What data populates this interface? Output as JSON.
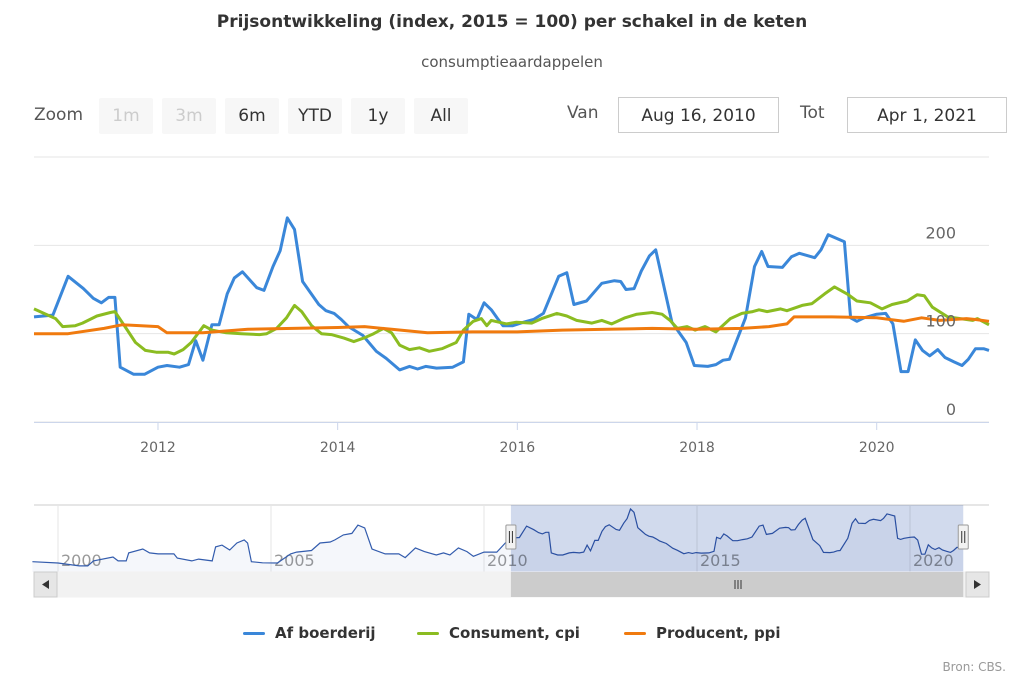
{
  "title": "Prijsontwikkeling (index, 2015 = 100) per schakel in de keten",
  "subtitle": "consumptieaardappelen",
  "range_selector": {
    "zoom_label": "Zoom",
    "buttons": [
      {
        "label": "1m",
        "disabled": true
      },
      {
        "label": "3m",
        "disabled": true
      },
      {
        "label": "6m",
        "disabled": false
      },
      {
        "label": "YTD",
        "disabled": false
      },
      {
        "label": "1y",
        "disabled": false
      },
      {
        "label": "All",
        "disabled": false
      }
    ],
    "from_label": "Van",
    "from_value": "Aug 16, 2010",
    "to_label": "Tot",
    "to_value": "Apr 1, 2021"
  },
  "credits": "Bron: CBS.",
  "chart_data": {
    "type": "line",
    "title": "Prijsontwikkeling (index, 2015 = 100) per schakel in de keten",
    "subtitle": "consumptieaardappelen",
    "xlim": [
      2010.62,
      2021.25
    ],
    "ylim": [
      0,
      300
    ],
    "y_ticks": [
      "0",
      "100",
      "200"
    ],
    "y_tick_values": [
      0,
      100,
      200
    ],
    "x_ticks": [
      "2012",
      "2014",
      "2016",
      "2018",
      "2020"
    ],
    "x_tick_values": [
      2012,
      2014,
      2016,
      2018,
      2020
    ],
    "grid": true,
    "legend_position": "bottom",
    "colors": {
      "blue": "#3a87d9",
      "green": "#8bbc21",
      "orange": "#f07a0e",
      "navigator_line": "#335cad",
      "navigator_mask": "#ccd6eb"
    },
    "series": [
      {
        "name": "Af boerderij",
        "color": "#3a87d9",
        "points": [
          [
            2010.62,
            119
          ],
          [
            2010.83,
            121
          ],
          [
            2011.0,
            165
          ],
          [
            2011.17,
            151
          ],
          [
            2011.28,
            140
          ],
          [
            2011.37,
            135
          ],
          [
            2011.45,
            141
          ],
          [
            2011.52,
            141
          ],
          [
            2011.58,
            62
          ],
          [
            2011.73,
            54
          ],
          [
            2011.85,
            54
          ],
          [
            2012.0,
            62
          ],
          [
            2012.1,
            64
          ],
          [
            2012.24,
            62
          ],
          [
            2012.34,
            65
          ],
          [
            2012.42,
            92
          ],
          [
            2012.5,
            70
          ],
          [
            2012.6,
            110
          ],
          [
            2012.68,
            110
          ],
          [
            2012.77,
            145
          ],
          [
            2012.85,
            163
          ],
          [
            2012.94,
            170
          ],
          [
            2013.1,
            152
          ],
          [
            2013.18,
            149
          ],
          [
            2013.28,
            176
          ],
          [
            2013.36,
            194
          ],
          [
            2013.44,
            231
          ],
          [
            2013.52,
            218
          ],
          [
            2013.61,
            159
          ],
          [
            2013.7,
            146
          ],
          [
            2013.79,
            133
          ],
          [
            2013.87,
            126
          ],
          [
            2013.96,
            123
          ],
          [
            2014.04,
            116
          ],
          [
            2014.12,
            108
          ],
          [
            2014.28,
            98
          ],
          [
            2014.43,
            80
          ],
          [
            2014.54,
            72
          ],
          [
            2014.69,
            59
          ],
          [
            2014.8,
            63
          ],
          [
            2014.89,
            60
          ],
          [
            2014.98,
            63
          ],
          [
            2015.1,
            61
          ],
          [
            2015.28,
            62
          ],
          [
            2015.4,
            68
          ],
          [
            2015.46,
            122
          ],
          [
            2015.55,
            116
          ],
          [
            2015.63,
            135
          ],
          [
            2015.71,
            127
          ],
          [
            2015.78,
            117
          ],
          [
            2015.84,
            109
          ],
          [
            2015.95,
            109
          ],
          [
            2016.07,
            113
          ],
          [
            2016.18,
            116
          ],
          [
            2016.29,
            123
          ],
          [
            2016.46,
            165
          ],
          [
            2016.55,
            169
          ],
          [
            2016.63,
            133
          ],
          [
            2016.77,
            137
          ],
          [
            2016.94,
            157
          ],
          [
            2017.08,
            160
          ],
          [
            2017.15,
            159
          ],
          [
            2017.21,
            150
          ],
          [
            2017.3,
            151
          ],
          [
            2017.38,
            171
          ],
          [
            2017.47,
            188
          ],
          [
            2017.54,
            195
          ],
          [
            2017.72,
            113
          ],
          [
            2017.88,
            90
          ],
          [
            2017.97,
            64
          ],
          [
            2018.12,
            63
          ],
          [
            2018.21,
            65
          ],
          [
            2018.29,
            70
          ],
          [
            2018.36,
            71
          ],
          [
            2018.54,
            118
          ],
          [
            2018.64,
            176
          ],
          [
            2018.72,
            193
          ],
          [
            2018.79,
            176
          ],
          [
            2018.95,
            175
          ],
          [
            2019.05,
            187
          ],
          [
            2019.14,
            191
          ],
          [
            2019.31,
            186
          ],
          [
            2019.38,
            195
          ],
          [
            2019.46,
            212
          ],
          [
            2019.55,
            208
          ],
          [
            2019.64,
            204
          ],
          [
            2019.71,
            118
          ],
          [
            2019.78,
            114
          ],
          [
            2019.86,
            118
          ],
          [
            2020.0,
            122
          ],
          [
            2020.1,
            123
          ],
          [
            2020.18,
            111
          ],
          [
            2020.27,
            57
          ],
          [
            2020.35,
            57
          ],
          [
            2020.43,
            93
          ],
          [
            2020.51,
            81
          ],
          [
            2020.59,
            75
          ],
          [
            2020.68,
            82
          ],
          [
            2020.76,
            73
          ],
          [
            2020.86,
            68
          ],
          [
            2020.95,
            64
          ],
          [
            2021.02,
            71
          ],
          [
            2021.1,
            83
          ],
          [
            2021.19,
            83
          ],
          [
            2021.25,
            81
          ]
        ]
      },
      {
        "name": "Consument, cpi",
        "color": "#8bbc21",
        "points": [
          [
            2010.62,
            128
          ],
          [
            2010.86,
            117
          ],
          [
            2010.94,
            108
          ],
          [
            2011.08,
            109
          ],
          [
            2011.16,
            112
          ],
          [
            2011.32,
            120
          ],
          [
            2011.47,
            124
          ],
          [
            2011.52,
            125
          ],
          [
            2011.64,
            107
          ],
          [
            2011.75,
            90
          ],
          [
            2011.86,
            81
          ],
          [
            2011.98,
            79
          ],
          [
            2012.11,
            79
          ],
          [
            2012.18,
            77
          ],
          [
            2012.28,
            82
          ],
          [
            2012.37,
            90
          ],
          [
            2012.51,
            109
          ],
          [
            2012.6,
            104
          ],
          [
            2012.76,
            101
          ],
          [
            2012.93,
            100
          ],
          [
            2013.13,
            99
          ],
          [
            2013.21,
            100
          ],
          [
            2013.32,
            106
          ],
          [
            2013.43,
            118
          ],
          [
            2013.52,
            132
          ],
          [
            2013.6,
            125
          ],
          [
            2013.71,
            109
          ],
          [
            2013.82,
            100
          ],
          [
            2013.93,
            99
          ],
          [
            2014.07,
            95
          ],
          [
            2014.18,
            91
          ],
          [
            2014.29,
            95
          ],
          [
            2014.4,
            100
          ],
          [
            2014.51,
            106
          ],
          [
            2014.6,
            101
          ],
          [
            2014.69,
            87
          ],
          [
            2014.8,
            82
          ],
          [
            2014.91,
            84
          ],
          [
            2015.02,
            80
          ],
          [
            2015.16,
            83
          ],
          [
            2015.32,
            90
          ],
          [
            2015.4,
            104
          ],
          [
            2015.51,
            114
          ],
          [
            2015.6,
            117
          ],
          [
            2015.66,
            109
          ],
          [
            2015.71,
            115
          ],
          [
            2015.88,
            111
          ],
          [
            2015.99,
            113
          ],
          [
            2016.16,
            112
          ],
          [
            2016.27,
            117
          ],
          [
            2016.44,
            123
          ],
          [
            2016.55,
            120
          ],
          [
            2016.66,
            115
          ],
          [
            2016.83,
            112
          ],
          [
            2016.94,
            115
          ],
          [
            2017.05,
            111
          ],
          [
            2017.2,
            118
          ],
          [
            2017.33,
            122
          ],
          [
            2017.5,
            124
          ],
          [
            2017.61,
            122
          ],
          [
            2017.7,
            115
          ],
          [
            2017.78,
            106
          ],
          [
            2017.89,
            108
          ],
          [
            2017.98,
            104
          ],
          [
            2018.09,
            108
          ],
          [
            2018.21,
            102
          ],
          [
            2018.37,
            117
          ],
          [
            2018.5,
            123
          ],
          [
            2018.62,
            125
          ],
          [
            2018.69,
            127
          ],
          [
            2018.78,
            125
          ],
          [
            2018.93,
            128
          ],
          [
            2019.0,
            126
          ],
          [
            2019.17,
            132
          ],
          [
            2019.28,
            134
          ],
          [
            2019.42,
            145
          ],
          [
            2019.53,
            153
          ],
          [
            2019.67,
            145
          ],
          [
            2019.78,
            137
          ],
          [
            2019.93,
            135
          ],
          [
            2020.06,
            128
          ],
          [
            2020.17,
            133
          ],
          [
            2020.34,
            137
          ],
          [
            2020.45,
            144
          ],
          [
            2020.53,
            143
          ],
          [
            2020.62,
            130
          ],
          [
            2020.79,
            119
          ],
          [
            2020.93,
            117
          ],
          [
            2021.07,
            115
          ],
          [
            2021.12,
            117
          ],
          [
            2021.25,
            110
          ]
        ]
      },
      {
        "name": "Producent, ppi",
        "color": "#f07a0e",
        "points": [
          [
            2010.62,
            100
          ],
          [
            2011.0,
            100
          ],
          [
            2011.4,
            106
          ],
          [
            2011.6,
            110
          ],
          [
            2012.0,
            108
          ],
          [
            2012.1,
            101
          ],
          [
            2012.5,
            101
          ],
          [
            2013.0,
            105
          ],
          [
            2013.5,
            106
          ],
          [
            2014.0,
            107
          ],
          [
            2014.3,
            108
          ],
          [
            2014.6,
            105
          ],
          [
            2015.0,
            101
          ],
          [
            2015.5,
            102
          ],
          [
            2016.0,
            102
          ],
          [
            2016.5,
            104
          ],
          [
            2017.0,
            105
          ],
          [
            2017.5,
            106
          ],
          [
            2018.0,
            105
          ],
          [
            2018.5,
            106
          ],
          [
            2018.8,
            108
          ],
          [
            2019.0,
            111
          ],
          [
            2019.08,
            119
          ],
          [
            2019.5,
            119
          ],
          [
            2020.0,
            118
          ],
          [
            2020.3,
            114
          ],
          [
            2020.5,
            118
          ],
          [
            2020.7,
            115
          ],
          [
            2021.0,
            117
          ],
          [
            2021.1,
            116
          ],
          [
            2021.25,
            114
          ]
        ]
      }
    ],
    "navigator": {
      "x_ticks": [
        "2000",
        "2005",
        "2010",
        "2015",
        "2020"
      ],
      "x_tick_values": [
        2000,
        2005,
        2010,
        2015,
        2020
      ],
      "selected_range": [
        2010.62,
        2021.25
      ],
      "series_before_2010": [
        [
          1999.4,
          28
        ],
        [
          2000.0,
          23
        ],
        [
          2000.5,
          12
        ],
        [
          2000.7,
          12
        ],
        [
          2000.83,
          31
        ],
        [
          2001.29,
          46
        ],
        [
          2001.41,
          31
        ],
        [
          2001.6,
          31
        ],
        [
          2001.66,
          62
        ],
        [
          2001.99,
          77
        ],
        [
          2002.15,
          62
        ],
        [
          2002.35,
          58
        ],
        [
          2002.72,
          58
        ],
        [
          2002.8,
          42
        ],
        [
          2003.14,
          31
        ],
        [
          2003.3,
          38
        ],
        [
          2003.62,
          31
        ],
        [
          2003.7,
          85
        ],
        [
          2003.85,
          92
        ],
        [
          2004.03,
          73
        ],
        [
          2004.2,
          100
        ],
        [
          2004.37,
          112
        ],
        [
          2004.45,
          100
        ],
        [
          2004.54,
          28
        ],
        [
          2004.8,
          24
        ],
        [
          2005.15,
          23
        ],
        [
          2005.46,
          58
        ],
        [
          2005.6,
          65
        ],
        [
          2005.95,
          71
        ],
        [
          2006.15,
          100
        ],
        [
          2006.39,
          104
        ],
        [
          2006.5,
          112
        ],
        [
          2006.7,
          131
        ],
        [
          2006.9,
          137
        ],
        [
          2007.04,
          169
        ],
        [
          2007.2,
          158
        ],
        [
          2007.37,
          77
        ],
        [
          2007.68,
          58
        ],
        [
          2008.0,
          58
        ],
        [
          2008.15,
          44
        ],
        [
          2008.39,
          81
        ],
        [
          2008.6,
          67
        ],
        [
          2008.88,
          54
        ],
        [
          2009.05,
          62
        ],
        [
          2009.2,
          54
        ],
        [
          2009.4,
          81
        ],
        [
          2009.6,
          67
        ],
        [
          2009.75,
          49
        ],
        [
          2010.0,
          65
        ],
        [
          2010.3,
          65
        ],
        [
          2010.5,
          100
        ]
      ]
    }
  }
}
